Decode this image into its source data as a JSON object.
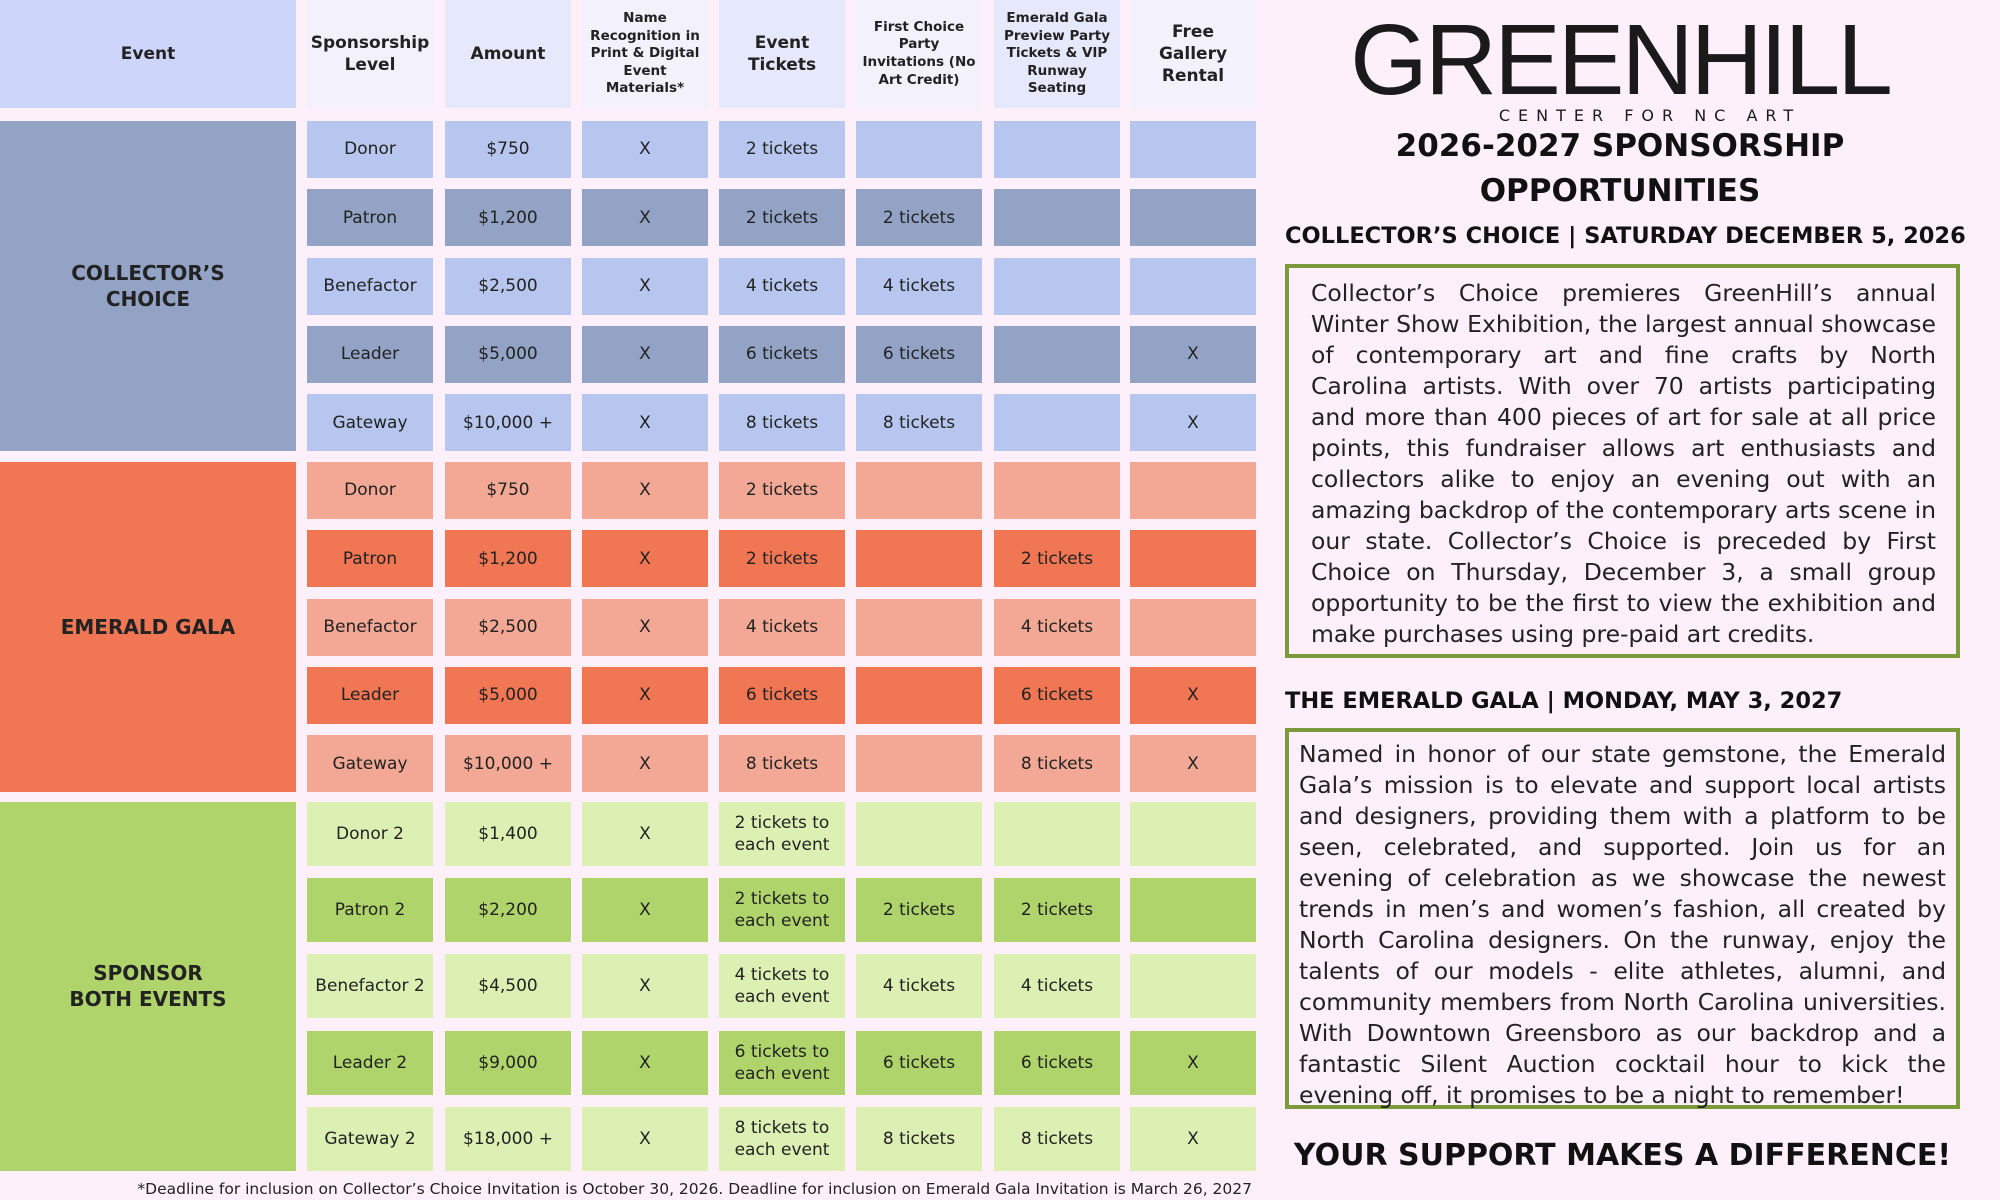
{
  "table": {
    "headers": [
      "Event",
      "Sponsorship Level",
      "Amount",
      "Name Recognition in Print & Digital Event Materials*",
      "Event Tickets",
      "First Choice Party Invitations (No Art Credit)",
      "Emerald Gala Preview Party Tickets & VIP Runway Seating",
      "Free Gallery Rental"
    ],
    "groups": [
      {
        "event": "COLLECTOR’S CHOICE",
        "rows": [
          [
            "Donor",
            "$750",
            "X",
            "2 tickets",
            null,
            null,
            null
          ],
          [
            "Patron",
            "$1,200",
            "X",
            "2 tickets",
            "2 tickets",
            null,
            null
          ],
          [
            "Benefactor",
            "$2,500",
            "X",
            "4 tickets",
            "4 tickets",
            null,
            null
          ],
          [
            "Leader",
            "$5,000",
            "X",
            "6 tickets",
            "6 tickets",
            null,
            "X"
          ],
          [
            "Gateway",
            "$10,000 +",
            "X",
            "8 tickets",
            "8 tickets",
            null,
            "X"
          ]
        ]
      },
      {
        "event": "EMERALD GALA",
        "rows": [
          [
            "Donor",
            "$750",
            "X",
            "2 tickets",
            null,
            null,
            null
          ],
          [
            "Patron",
            "$1,200",
            "X",
            "2 tickets",
            null,
            "2 tickets",
            null
          ],
          [
            "Benefactor",
            "$2,500",
            "X",
            "4 tickets",
            null,
            "4 tickets",
            null
          ],
          [
            "Leader",
            "$5,000",
            "X",
            "6 tickets",
            null,
            "6 tickets",
            "X"
          ],
          [
            "Gateway",
            "$10,000 +",
            "X",
            "8 tickets",
            null,
            "8 tickets",
            "X"
          ]
        ]
      },
      {
        "event": "SPONSOR BOTH EVENTS",
        "rows": [
          [
            "Donor 2",
            "$1,400",
            "X",
            "2 tickets to each event",
            null,
            null,
            null
          ],
          [
            "Patron 2",
            "$2,200",
            "X",
            "2 tickets to each event",
            "2 tickets",
            "2 tickets",
            null
          ],
          [
            "Benefactor 2",
            "$4,500",
            "X",
            "4 tickets to each event",
            "4 tickets",
            "4 tickets",
            null
          ],
          [
            "Leader 2",
            "$9,000",
            "X",
            "6 tickets to each event",
            "6 tickets",
            "6 tickets",
            "X"
          ],
          [
            "Gateway 2",
            "$18,000 +",
            "X",
            "8 tickets to each event",
            "8 tickets",
            "8 tickets",
            "X"
          ]
        ]
      }
    ],
    "footnote": "*Deadline for inclusion on Collector’s Choice Invitation is October 30, 2026. Deadline for inclusion on Emerald Gala Invitation is March 26, 2027"
  },
  "logo": {
    "name": "GREENHILL",
    "tagline": "CENTER FOR NC ART"
  },
  "title": "2026-2027 SPONSORSHIP OPPORTUNITIES",
  "sections": [
    {
      "heading": "COLLECTOR’S CHOICE | SATURDAY DECEMBER 5, 2026",
      "text": "Collector’s Choice premieres GreenHill’s annual Winter Show Exhibition, the largest annual showcase of contemporary art and fine crafts by North Carolina artists. With over 70 artists participating and more than 400 pieces of art for sale at all price points, this fundraiser allows art enthusiasts and collectors alike to enjoy an evening out with an amazing backdrop of the contemporary arts scene in our state. Collector’s Choice is preceded by First Choice on Thursday, December 3, a small group opportunity to be the first to view the exhibition and make purchases using pre-paid art credits."
    },
    {
      "heading": "THE EMERALD GALA | MONDAY, MAY 3, 2027",
      "text": "Named in honor of our state gemstone, the Emerald Gala’s mission is to elevate and support local artists and designers, providing them with a platform to be seen, celebrated, and supported. Join us for an evening of celebration as we showcase the newest trends in men’s and women’s fashion, all created by North Carolina designers. On the runway, enjoy the talents of our models - elite athletes, alumni, and community members from North Carolina universities. With Downtown Greensboro as our backdrop and a fantastic Silent Auction cocktail hour to kick the evening off, it promises to be a night to remember!"
    }
  ],
  "closing": "YOUR SUPPORT MAKES A DIFFERENCE!"
}
